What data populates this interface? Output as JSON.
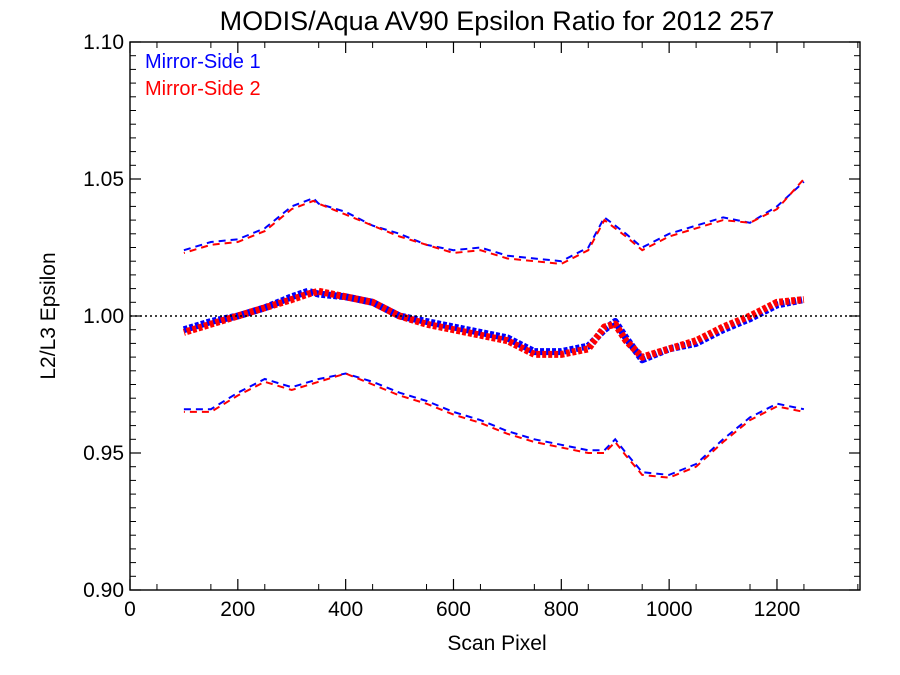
{
  "chart_data": {
    "type": "line",
    "title": "MODIS/Aqua AV90 Epsilon Ratio for 2012 257",
    "xlabel": "Scan Pixel",
    "ylabel": "L2/L3 Epsilon",
    "xlim": [
      0,
      1354
    ],
    "ylim": [
      0.9,
      1.1
    ],
    "x_ticks": [
      0,
      200,
      400,
      600,
      800,
      1000,
      1200
    ],
    "x_tick_labels": [
      "0",
      "200",
      "400",
      "600",
      "800",
      "1000",
      "1200"
    ],
    "y_ticks": [
      0.9,
      0.95,
      1.0,
      1.05,
      1.1
    ],
    "y_tick_labels": [
      "0.90",
      "0.95",
      "1.00",
      "1.05",
      "1.10"
    ],
    "reference_line": 1.0,
    "legend_position": "top-left",
    "colors": {
      "mirror_side_1": "#0000ff",
      "mirror_side_2": "#ff0000",
      "axes": "#000000"
    },
    "series": [
      {
        "name": "Mirror-Side 1",
        "mean": {
          "x": [
            100,
            150,
            200,
            250,
            300,
            330,
            350,
            400,
            450,
            500,
            550,
            600,
            650,
            700,
            750,
            800,
            850,
            880,
            900,
            920,
            950,
            1000,
            1050,
            1100,
            1150,
            1200,
            1250
          ],
          "y": [
            0.995,
            0.998,
            1.0,
            1.003,
            1.007,
            1.009,
            1.008,
            1.007,
            1.005,
            1.0,
            0.998,
            0.996,
            0.994,
            0.992,
            0.987,
            0.987,
            0.989,
            0.995,
            0.998,
            0.992,
            0.984,
            0.988,
            0.99,
            0.995,
            0.999,
            1.004,
            1.006
          ]
        },
        "upper": {
          "x": [
            100,
            150,
            200,
            250,
            300,
            340,
            350,
            400,
            450,
            500,
            550,
            600,
            650,
            700,
            750,
            800,
            850,
            880,
            900,
            920,
            950,
            1000,
            1050,
            1100,
            1150,
            1200,
            1250
          ],
          "y": [
            1.024,
            1.027,
            1.028,
            1.032,
            1.04,
            1.043,
            1.041,
            1.038,
            1.033,
            1.03,
            1.026,
            1.024,
            1.025,
            1.022,
            1.021,
            1.02,
            1.025,
            1.036,
            1.033,
            1.03,
            1.025,
            1.03,
            1.033,
            1.036,
            1.034,
            1.04,
            1.049
          ]
        },
        "lower": {
          "x": [
            100,
            150,
            200,
            250,
            300,
            350,
            400,
            450,
            500,
            550,
            600,
            650,
            700,
            750,
            800,
            850,
            880,
            900,
            920,
            950,
            1000,
            1050,
            1100,
            1150,
            1200,
            1250
          ],
          "y": [
            0.966,
            0.966,
            0.972,
            0.977,
            0.974,
            0.977,
            0.979,
            0.976,
            0.972,
            0.969,
            0.965,
            0.962,
            0.958,
            0.955,
            0.953,
            0.951,
            0.951,
            0.955,
            0.95,
            0.943,
            0.942,
            0.946,
            0.955,
            0.963,
            0.968,
            0.966
          ]
        }
      },
      {
        "name": "Mirror-Side 2",
        "mean": {
          "x": [
            100,
            150,
            200,
            250,
            300,
            330,
            350,
            400,
            450,
            500,
            550,
            600,
            650,
            700,
            750,
            800,
            850,
            880,
            900,
            920,
            950,
            1000,
            1050,
            1100,
            1150,
            1200,
            1250
          ],
          "y": [
            0.994,
            0.997,
            1.0,
            1.003,
            1.006,
            1.008,
            1.009,
            1.007,
            1.005,
            1.0,
            0.997,
            0.995,
            0.993,
            0.991,
            0.986,
            0.986,
            0.988,
            0.996,
            0.997,
            0.991,
            0.985,
            0.988,
            0.991,
            0.996,
            1.0,
            1.005,
            1.006
          ]
        },
        "upper": {
          "x": [
            100,
            150,
            200,
            250,
            300,
            340,
            350,
            400,
            450,
            500,
            550,
            600,
            650,
            700,
            750,
            800,
            850,
            880,
            900,
            920,
            950,
            1000,
            1050,
            1100,
            1150,
            1200,
            1250
          ],
          "y": [
            1.023,
            1.026,
            1.027,
            1.031,
            1.039,
            1.042,
            1.041,
            1.037,
            1.033,
            1.029,
            1.026,
            1.023,
            1.024,
            1.021,
            1.02,
            1.019,
            1.024,
            1.035,
            1.032,
            1.029,
            1.024,
            1.029,
            1.032,
            1.035,
            1.034,
            1.039,
            1.05
          ]
        },
        "lower": {
          "x": [
            100,
            150,
            200,
            250,
            300,
            350,
            400,
            450,
            500,
            550,
            600,
            650,
            700,
            750,
            800,
            850,
            880,
            900,
            920,
            950,
            1000,
            1050,
            1100,
            1150,
            1200,
            1250
          ],
          "y": [
            0.965,
            0.965,
            0.971,
            0.976,
            0.973,
            0.976,
            0.979,
            0.975,
            0.971,
            0.968,
            0.964,
            0.961,
            0.957,
            0.954,
            0.952,
            0.95,
            0.95,
            0.954,
            0.949,
            0.942,
            0.941,
            0.945,
            0.954,
            0.962,
            0.967,
            0.965
          ]
        }
      }
    ]
  }
}
